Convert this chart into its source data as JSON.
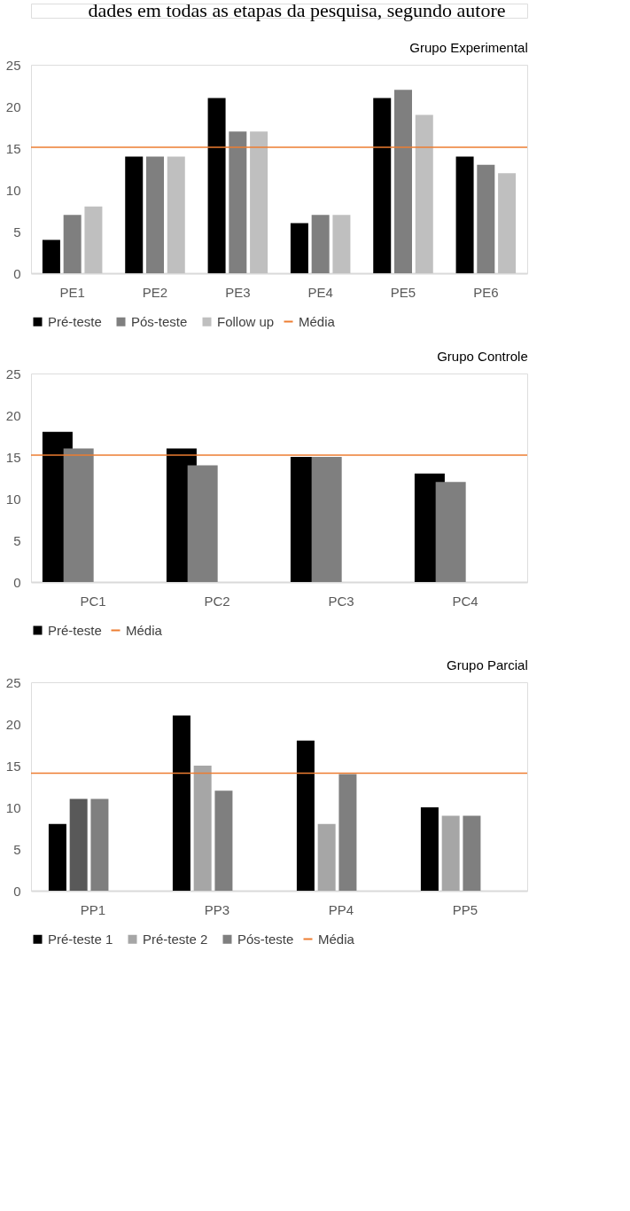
{
  "chart_data": [
    {
      "type": "bar",
      "title": "Grupo Experimental",
      "annotations": [
        "dades em todas as etapas da pesquisa, segundo autore"
      ],
      "categories": [
        "PE1",
        "PE2",
        "PE3",
        "PE4",
        "PE5",
        "PE6"
      ],
      "series": [
        {
          "name": "Pré-teste",
          "color": "#000000",
          "values": [
            4,
            14,
            21,
            6,
            21,
            14
          ]
        },
        {
          "name": "Pós-teste",
          "color": "#7f7f7f",
          "values": [
            7,
            14,
            17,
            7,
            22,
            13
          ]
        },
        {
          "name": "Follow up",
          "color": "#bfbfbf",
          "values": [
            8,
            14,
            17,
            7,
            19,
            12
          ]
        }
      ],
      "ylim": [
        0,
        25
      ],
      "yticks": [
        0,
        5,
        10,
        15,
        20,
        25
      ],
      "grid": false,
      "legend": "bottom",
      "ref_lines": [
        {
          "axis": "y",
          "value": 15.1,
          "label": "Média",
          "color": "#ed7d31"
        }
      ]
    },
    {
      "type": "bar",
      "title": "Grupo Controle",
      "categories": [
        "PC1",
        "PC2",
        "PC3",
        "PC4"
      ],
      "series": [
        {
          "name": "Pré-teste",
          "color": "#000000",
          "values": [
            18,
            16,
            15,
            13
          ]
        },
        {
          "color": "#7f7f7f",
          "values": [
            16,
            14,
            15,
            12
          ]
        }
      ],
      "ylim": [
        0,
        25
      ],
      "yticks": [
        0,
        5,
        10,
        15,
        20,
        25
      ],
      "grid": false,
      "legend": "bottom",
      "ref_lines": [
        {
          "axis": "y",
          "value": 15.2,
          "label": "Média",
          "color": "#ed7d31"
        }
      ]
    },
    {
      "type": "bar",
      "title": "Grupo Parcial",
      "categories": [
        "PP1",
        "PP3",
        "PP4",
        "PP5"
      ],
      "series": [
        {
          "name": "Pré-teste 1",
          "color": "#000000",
          "values": [
            8,
            21,
            18,
            10
          ]
        },
        {
          "name": "Pré-teste 2",
          "color": "#a6a6a6",
          "colors": [
            "#595959",
            "#a6a6a6",
            "#a6a6a6",
            "#a6a6a6"
          ],
          "values": [
            11,
            15,
            8,
            9
          ]
        },
        {
          "name": "Pós-teste",
          "color": "#7f7f7f",
          "values": [
            11,
            12,
            14,
            9
          ]
        }
      ],
      "ylim": [
        0,
        25
      ],
      "yticks": [
        0,
        5,
        10,
        15,
        20,
        25
      ],
      "grid": false,
      "legend": "bottom",
      "ref_lines": [
        {
          "axis": "y",
          "value": 14.1,
          "label": "Média",
          "color": "#ed7d31"
        }
      ]
    }
  ]
}
